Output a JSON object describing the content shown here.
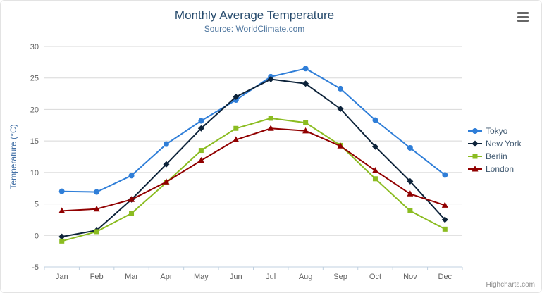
{
  "header": {
    "title": "Monthly Average Temperature",
    "subtitle": "Source: WorldClimate.com"
  },
  "credit": "Highcharts.com",
  "export_menu": {
    "icon": "hamburger-icon"
  },
  "axis_colors": {
    "grid_line": "#d8d8d8",
    "axis_line": "#c0d0e0",
    "tick": "#c0d0e0",
    "label": "#606060",
    "ylabel_title": "#4572a7"
  },
  "chart_data": {
    "type": "line",
    "title": "Monthly Average Temperature",
    "subtitle": "Source: WorldClimate.com",
    "categories": [
      "Jan",
      "Feb",
      "Mar",
      "Apr",
      "May",
      "Jun",
      "Jul",
      "Aug",
      "Sep",
      "Oct",
      "Nov",
      "Dec"
    ],
    "xlabel": "",
    "ylabel": "Temperature (°C)",
    "ylim": [
      -5,
      30
    ],
    "ytick_step": 5,
    "yticks": [
      -5,
      0,
      5,
      10,
      15,
      20,
      25,
      30
    ],
    "grid": true,
    "legend_position": "right",
    "series": [
      {
        "name": "Tokyo",
        "color": "#2f7ed8",
        "marker": "circle",
        "values": [
          7.0,
          6.9,
          9.5,
          14.5,
          18.2,
          21.5,
          25.2,
          26.5,
          23.3,
          18.3,
          13.9,
          9.6
        ]
      },
      {
        "name": "New York",
        "color": "#0d233a",
        "marker": "diamond",
        "values": [
          -0.2,
          0.8,
          5.7,
          11.3,
          17.0,
          22.0,
          24.8,
          24.1,
          20.1,
          14.1,
          8.6,
          2.5
        ]
      },
      {
        "name": "Berlin",
        "color": "#8bbc21",
        "marker": "square",
        "values": [
          -0.9,
          0.6,
          3.5,
          8.4,
          13.5,
          17.0,
          18.6,
          17.9,
          14.3,
          9.0,
          3.9,
          1.0
        ]
      },
      {
        "name": "London",
        "color": "#910000",
        "marker": "triangle",
        "values": [
          3.9,
          4.2,
          5.7,
          8.5,
          11.9,
          15.2,
          17.0,
          16.6,
          14.2,
          10.3,
          6.6,
          4.8
        ]
      }
    ]
  }
}
